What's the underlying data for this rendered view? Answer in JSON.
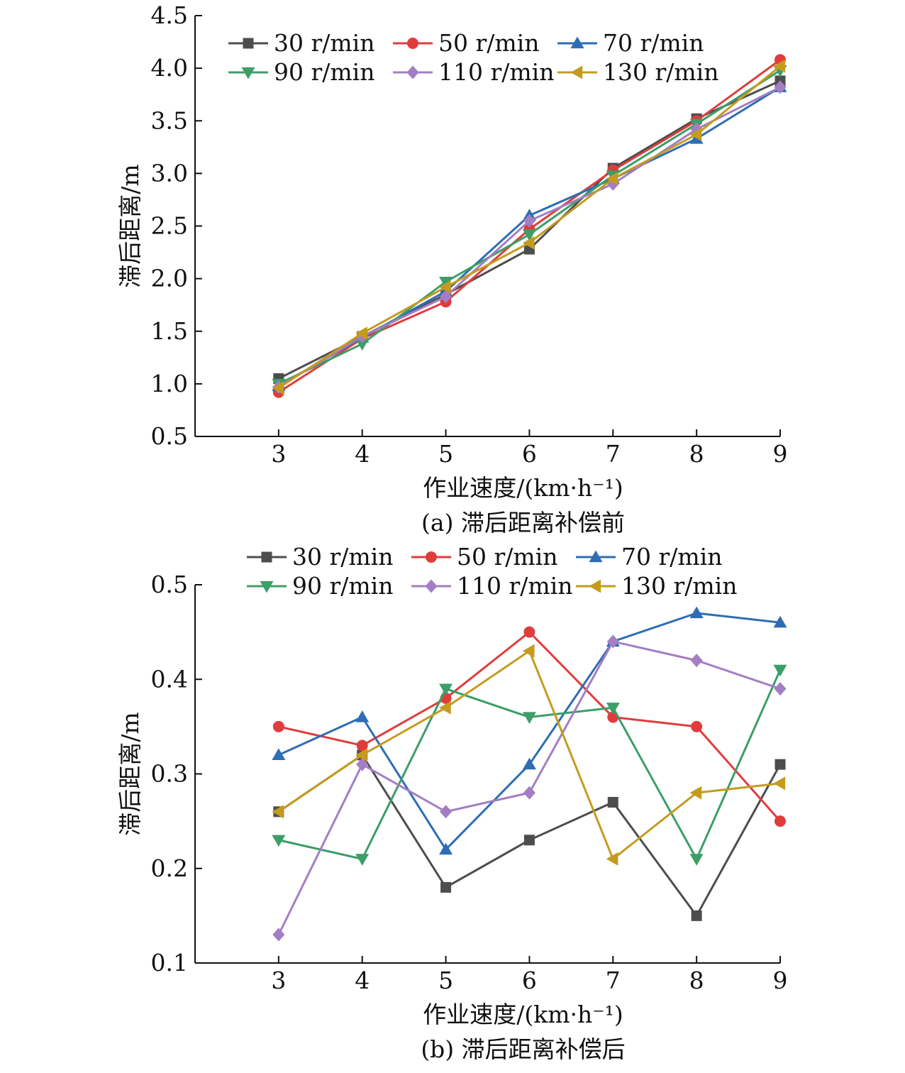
{
  "colors": {
    "30 r/min": "#4d4d4d",
    "50 r/min": "#e03c3c",
    "70 r/min": "#2e6db4",
    "90 r/min": "#3c9e68",
    "110 r/min": "#a37ec4",
    "130 r/min": "#c59b1e"
  },
  "markers": {
    "30 r/min": "square",
    "50 r/min": "circle",
    "70 r/min": "triangle-up",
    "90 r/min": "triangle-down",
    "110 r/min": "diamond",
    "130 r/min": "triangle-left"
  },
  "chart_data": [
    {
      "type": "line",
      "caption": "(a) 滞后距离补偿前",
      "xlabel": "作业速度/(km·h⁻¹)",
      "ylabel": "滞后距离/m",
      "x": [
        3,
        4,
        5,
        6,
        7,
        8,
        9
      ],
      "xticks": [
        "3",
        "4",
        "5",
        "6",
        "7",
        "8",
        "9"
      ],
      "xlim": [
        2,
        9
      ],
      "ylim": [
        0.5,
        4.5
      ],
      "yticks": [
        "0.5",
        "1.0",
        "1.5",
        "2.0",
        "2.5",
        "3.0",
        "3.5",
        "4.0",
        "4.5"
      ],
      "grid": false,
      "legend": "top-left",
      "series": [
        {
          "name": "30 r/min",
          "values": [
            1.05,
            1.45,
            1.85,
            2.28,
            3.05,
            3.52,
            3.88
          ]
        },
        {
          "name": "50 r/min",
          "values": [
            0.92,
            1.43,
            1.78,
            2.47,
            3.03,
            3.5,
            4.08
          ]
        },
        {
          "name": "70 r/min",
          "values": [
            0.98,
            1.44,
            1.88,
            2.6,
            2.95,
            3.33,
            3.82
          ]
        },
        {
          "name": "90 r/min",
          "values": [
            1.0,
            1.38,
            1.97,
            2.42,
            2.98,
            3.47,
            3.98
          ]
        },
        {
          "name": "110 r/min",
          "values": [
            0.97,
            1.45,
            1.83,
            2.55,
            2.9,
            3.42,
            3.82
          ]
        },
        {
          "name": "130 r/min",
          "values": [
            0.96,
            1.48,
            1.92,
            2.34,
            2.95,
            3.37,
            4.02
          ]
        }
      ]
    },
    {
      "type": "line",
      "caption": "(b) 滞后距离补偿后",
      "xlabel": "作业速度/(km·h⁻¹)",
      "ylabel": "滞后距离/m",
      "x": [
        3,
        4,
        5,
        6,
        7,
        8,
        9
      ],
      "xticks": [
        "3",
        "4",
        "5",
        "6",
        "7",
        "8",
        "9"
      ],
      "xlim": [
        2,
        9
      ],
      "ylim": [
        0.1,
        0.5
      ],
      "yticks": [
        "0.1",
        "0.2",
        "0.3",
        "0.4",
        "0.5"
      ],
      "grid": false,
      "legend": "top",
      "series": [
        {
          "name": "30 r/min",
          "values": [
            0.26,
            0.32,
            0.18,
            0.23,
            0.27,
            0.15,
            0.31
          ]
        },
        {
          "name": "50 r/min",
          "values": [
            0.35,
            0.33,
            0.38,
            0.45,
            0.36,
            0.35,
            0.25
          ]
        },
        {
          "name": "70 r/min",
          "values": [
            0.32,
            0.36,
            0.22,
            0.31,
            0.44,
            0.47,
            0.46
          ]
        },
        {
          "name": "90 r/min",
          "values": [
            0.23,
            0.21,
            0.39,
            0.36,
            0.37,
            0.21,
            0.41
          ]
        },
        {
          "name": "110 r/min",
          "values": [
            0.13,
            0.31,
            0.26,
            0.28,
            0.44,
            0.42,
            0.39
          ]
        },
        {
          "name": "130 r/min",
          "values": [
            0.26,
            0.32,
            0.37,
            0.43,
            0.21,
            0.28,
            0.29
          ]
        }
      ]
    }
  ]
}
